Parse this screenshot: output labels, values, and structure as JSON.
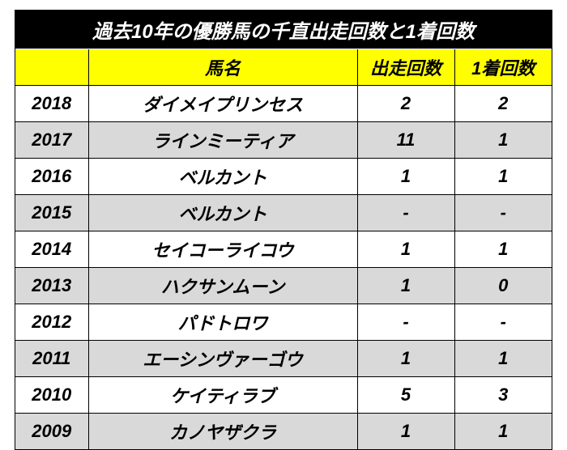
{
  "title": "過去10年の優勝馬の千直出走回数と1着回数",
  "columns": [
    "",
    "馬名",
    "出走回数",
    "1着回数"
  ],
  "rows": [
    {
      "year": "2018",
      "name": "ダイメイプリンセス",
      "starts": "2",
      "wins": "2"
    },
    {
      "year": "2017",
      "name": "ラインミーティア",
      "starts": "11",
      "wins": "1"
    },
    {
      "year": "2016",
      "name": "ベルカント",
      "starts": "1",
      "wins": "1"
    },
    {
      "year": "2015",
      "name": "ベルカント",
      "starts": "-",
      "wins": "-"
    },
    {
      "year": "2014",
      "name": "セイコーライコウ",
      "starts": "1",
      "wins": "1"
    },
    {
      "year": "2013",
      "name": "ハクサンムーン",
      "starts": "1",
      "wins": "0"
    },
    {
      "year": "2012",
      "name": "パドトロワ",
      "starts": "-",
      "wins": "-"
    },
    {
      "year": "2011",
      "name": "エーシンヴァーゴウ",
      "starts": "1",
      "wins": "1"
    },
    {
      "year": "2010",
      "name": "ケイティラブ",
      "starts": "5",
      "wins": "3"
    },
    {
      "year": "2009",
      "name": "カノヤザクラ",
      "starts": "1",
      "wins": "1"
    }
  ]
}
